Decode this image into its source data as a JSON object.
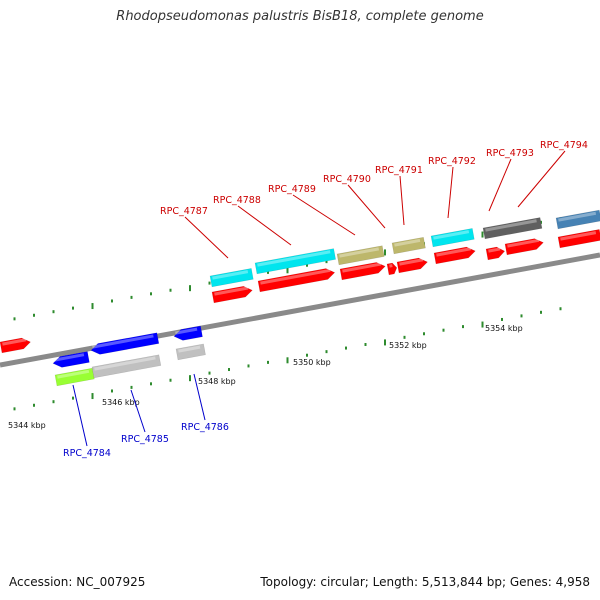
{
  "title": "Rhodopseudomonas palustris BisB18, complete genome",
  "footer": {
    "accession": "Accession: NC_007925",
    "topology": "Topology: circular; Length: 5,513,844 bp; Genes: 4,958"
  },
  "colors": {
    "backbone": "#8a8a8a",
    "tick": "#2e8b2e",
    "label_top": "#cc0000",
    "label_bottom": "#0000cc",
    "cds_forward": "#ff0000",
    "cds_reverse": "#0000ff",
    "cyan": "#00e5ee",
    "khaki": "#bdb76b",
    "gray": "#c0c0c0",
    "darkgray": "#606060",
    "steelblue": "#4682b4",
    "lime": "#99ff33"
  },
  "kbp_labels": [
    "5344 kbp",
    "5346 kbp",
    "5348 kbp",
    "5350 kbp",
    "5352 kbp",
    "5354 kbp"
  ],
  "gene_labels_top": [
    "RPC_4787",
    "RPC_4788",
    "RPC_4789",
    "RPC_4790",
    "RPC_4791",
    "RPC_4792",
    "RPC_4793",
    "RPC_4794"
  ],
  "gene_labels_bottom": [
    "RPC_4784",
    "RPC_4785",
    "RPC_4786"
  ]
}
